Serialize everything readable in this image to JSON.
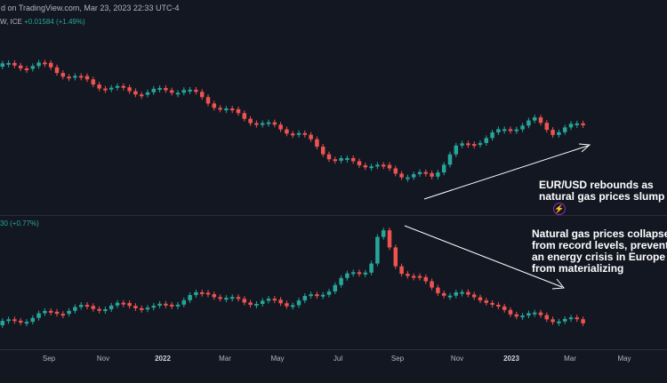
{
  "header": {
    "published": "d on TradingView.com, Mar 23, 2023 22:33 UTC-4"
  },
  "top_legend": {
    "symbol": "W, ICE",
    "change": "+0.01584 (+1.49%)"
  },
  "bottom_legend": {
    "change": "30 (+0.77%)"
  },
  "annotations": {
    "top": "EUR/USD rebounds as\nnatural gas prices slump",
    "bottom": "Natural gas prices collapse\nfrom record levels, prevent\nan energy crisis in Europe\nfrom materializing"
  },
  "colors": {
    "up": "#26a69a",
    "down": "#ef5350",
    "bg": "#131722",
    "grid": "#2a2e39"
  },
  "x_axis_labels": [
    "Sep",
    "Nov",
    "2022",
    "Mar",
    "May",
    "Jul",
    "Sep",
    "Nov",
    "2023",
    "Mar",
    "May"
  ],
  "x_axis_bold": [
    "2022",
    "2023"
  ],
  "icons": {
    "flash": "lightning-icon"
  }
}
